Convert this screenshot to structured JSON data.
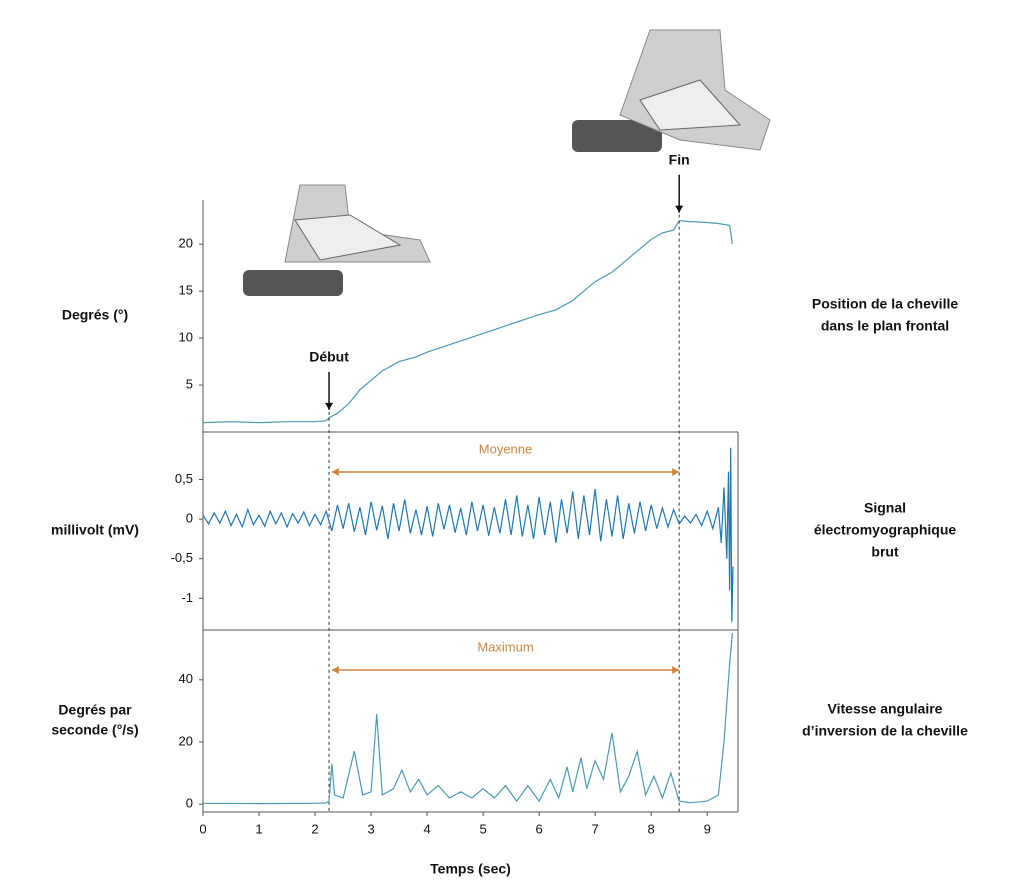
{
  "chart_data": [
    {
      "type": "line",
      "ylabel": [
        "Degrés (°)"
      ],
      "description": [
        "Position de la cheville",
        "dans le plan frontal"
      ],
      "color": "#4a9bb5",
      "xlim": [
        0,
        9.55
      ],
      "ylim": [
        0,
        24.7
      ],
      "yticks": [
        5,
        10,
        15,
        20
      ],
      "x": [
        0,
        0.5,
        1,
        1.5,
        2,
        2.2,
        2.25,
        2.4,
        2.6,
        2.8,
        3.0,
        3.2,
        3.5,
        3.8,
        4.0,
        4.5,
        5.0,
        5.5,
        6.0,
        6.3,
        6.6,
        7.0,
        7.3,
        7.6,
        7.8,
        8.0,
        8.2,
        8.4,
        8.5,
        8.7,
        9.0,
        9.2,
        9.4,
        9.45
      ],
      "values": [
        1.0,
        1.1,
        1.0,
        1.1,
        1.1,
        1.2,
        1.5,
        2.0,
        3.0,
        4.5,
        5.5,
        6.5,
        7.5,
        8.0,
        8.5,
        9.5,
        10.5,
        11.5,
        12.5,
        13.0,
        14.0,
        16.0,
        17.0,
        18.5,
        19.5,
        20.5,
        21.2,
        21.5,
        22.5,
        22.4,
        22.3,
        22.2,
        22.0,
        20.0
      ],
      "events": [
        {
          "label": "Début",
          "x": 2.25
        },
        {
          "label": "Fin",
          "x": 8.5
        }
      ]
    },
    {
      "type": "line",
      "ylabel": [
        "millivolt (mV)"
      ],
      "description": [
        "Signal",
        "électromyographique",
        "brut"
      ],
      "color": "#1f77b4",
      "xlim": [
        0,
        9.55
      ],
      "ylim": [
        -1.4,
        1.1
      ],
      "yticks": [
        {
          "value": -1,
          "label": "-1"
        },
        {
          "value": -0.5,
          "label": "-0,5"
        },
        0,
        {
          "value": 0.5,
          "label": "0,5"
        }
      ],
      "range": {
        "label": "Moyenne",
        "x": [
          2.3,
          8.5
        ]
      },
      "x": [
        0,
        0.1,
        0.2,
        0.3,
        0.4,
        0.5,
        0.6,
        0.7,
        0.8,
        0.9,
        1.0,
        1.1,
        1.2,
        1.3,
        1.4,
        1.5,
        1.6,
        1.7,
        1.8,
        1.9,
        2.0,
        2.1,
        2.2,
        2.3,
        2.4,
        2.5,
        2.6,
        2.7,
        2.8,
        2.9,
        3.0,
        3.1,
        3.2,
        3.3,
        3.4,
        3.5,
        3.6,
        3.7,
        3.8,
        3.9,
        4.0,
        4.1,
        4.2,
        4.3,
        4.4,
        4.5,
        4.6,
        4.7,
        4.8,
        4.9,
        5.0,
        5.1,
        5.2,
        5.3,
        5.4,
        5.5,
        5.6,
        5.7,
        5.8,
        5.9,
        6.0,
        6.1,
        6.2,
        6.3,
        6.4,
        6.5,
        6.6,
        6.7,
        6.8,
        6.9,
        7.0,
        7.1,
        7.2,
        7.3,
        7.4,
        7.5,
        7.6,
        7.7,
        7.8,
        7.9,
        8.0,
        8.1,
        8.2,
        8.3,
        8.4,
        8.5,
        8.6,
        8.7,
        8.8,
        8.9,
        9.0,
        9.1,
        9.2,
        9.25,
        9.3,
        9.35,
        9.38,
        9.4,
        9.42,
        9.44,
        9.46
      ],
      "values": [
        0.05,
        -0.06,
        0.08,
        -0.05,
        0.1,
        -0.08,
        0.06,
        -0.1,
        0.12,
        -0.07,
        0.05,
        -0.09,
        0.1,
        -0.06,
        0.08,
        -0.1,
        0.07,
        -0.05,
        0.09,
        -0.08,
        0.06,
        -0.07,
        0.1,
        -0.15,
        0.18,
        -0.12,
        0.2,
        -0.16,
        0.15,
        -0.2,
        0.22,
        -0.14,
        0.17,
        -0.25,
        0.2,
        -0.15,
        0.25,
        -0.18,
        0.12,
        -0.2,
        0.16,
        -0.22,
        0.2,
        -0.13,
        0.18,
        -0.17,
        0.14,
        -0.2,
        0.22,
        -0.15,
        0.18,
        -0.21,
        0.15,
        -0.18,
        0.25,
        -0.2,
        0.3,
        -0.22,
        0.18,
        -0.25,
        0.28,
        -0.2,
        0.22,
        -0.3,
        0.25,
        -0.18,
        0.35,
        -0.25,
        0.3,
        -0.2,
        0.38,
        -0.28,
        0.25,
        -0.22,
        0.3,
        -0.25,
        0.2,
        -0.18,
        0.22,
        -0.15,
        0.18,
        -0.12,
        0.14,
        -0.1,
        0.12,
        -0.06,
        0.04,
        -0.05,
        0.06,
        -0.08,
        0.1,
        -0.12,
        0.15,
        -0.3,
        0.4,
        -0.5,
        0.6,
        -0.9,
        0.9,
        -1.3,
        -0.6
      ]
    },
    {
      "type": "line",
      "ylabel": [
        "Degrés par",
        "seconde (°/s)"
      ],
      "description": [
        "Vitesse angulaire",
        "d’inversion de la cheville"
      ],
      "color": "#4a9bb5",
      "xlim": [
        0,
        9.55
      ],
      "ylim": [
        -2.5,
        56
      ],
      "yticks": [
        0,
        20,
        40
      ],
      "xticks": [
        0,
        1,
        2,
        3,
        4,
        5,
        6,
        7,
        8,
        9
      ],
      "xlabel": "Temps (sec)",
      "range": {
        "label": "Maximum",
        "x": [
          2.3,
          8.5
        ]
      },
      "x": [
        0,
        1,
        2,
        2.2,
        2.25,
        2.3,
        2.35,
        2.5,
        2.7,
        2.85,
        3.0,
        3.1,
        3.2,
        3.4,
        3.55,
        3.7,
        3.85,
        4.0,
        4.2,
        4.4,
        4.6,
        4.8,
        5.0,
        5.2,
        5.4,
        5.6,
        5.8,
        6.0,
        6.2,
        6.35,
        6.5,
        6.6,
        6.75,
        6.85,
        7.0,
        7.15,
        7.3,
        7.45,
        7.6,
        7.75,
        7.9,
        8.05,
        8.2,
        8.35,
        8.5,
        8.7,
        9.0,
        9.2,
        9.3,
        9.4,
        9.45
      ],
      "values": [
        0.3,
        0.2,
        0.3,
        0.4,
        1,
        13,
        3,
        2,
        17,
        3,
        4,
        29,
        3,
        5,
        11,
        4,
        8,
        3,
        6,
        2,
        4,
        2,
        5,
        2,
        6,
        1,
        6,
        1,
        8,
        2,
        12,
        4,
        15,
        5,
        14,
        8,
        23,
        4,
        9,
        17,
        3,
        9,
        2,
        10,
        1,
        0.5,
        1,
        3,
        20,
        45,
        55
      ]
    }
  ]
}
